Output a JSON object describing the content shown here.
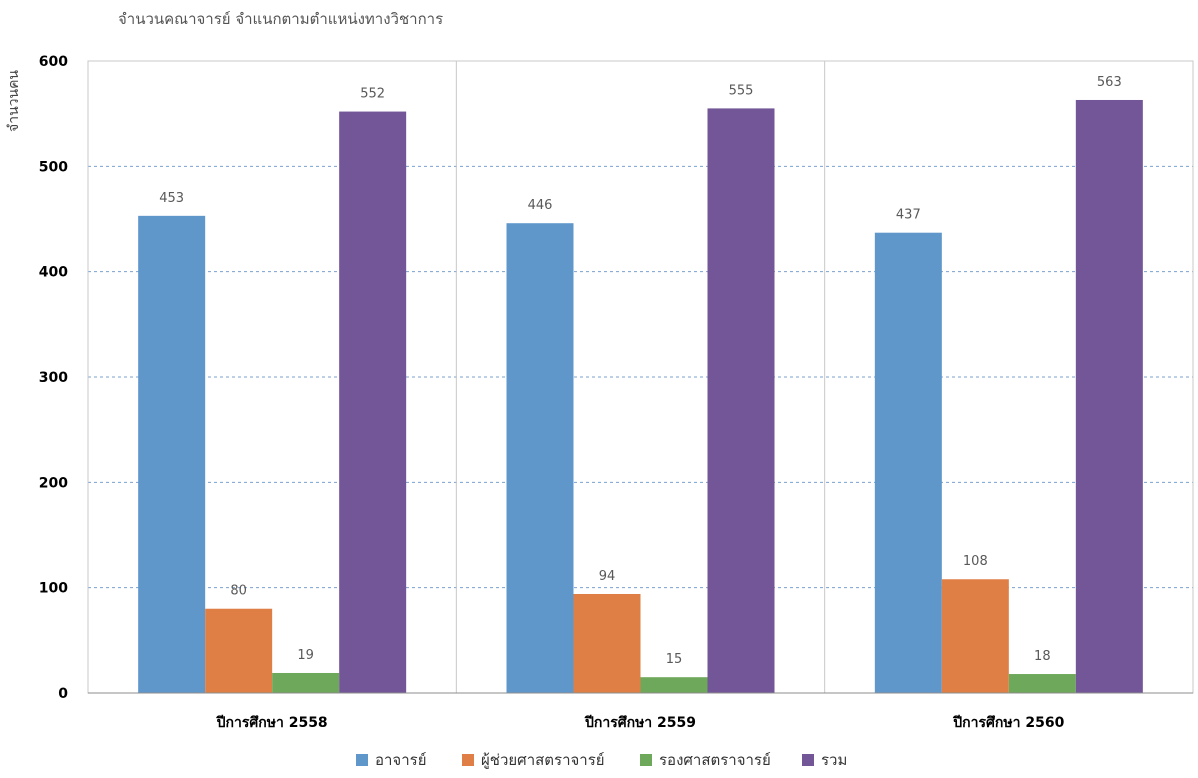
{
  "chart_data": {
    "type": "bar",
    "title": "จำนวนคณาจารย์ จำแนกตามตำแหน่งทางวิชาการ",
    "xlabel": "",
    "ylabel": "จำนวนคน",
    "ylim": [
      0,
      600
    ],
    "yticks": [
      0,
      100,
      200,
      300,
      400,
      500,
      600
    ],
    "categories": [
      "ปีการศึกษา 2558",
      "ปีการศึกษา 2559",
      "ปีการศึกษา 2560"
    ],
    "series": [
      {
        "name": "อาจารย์",
        "color": "#5f97cb",
        "values": [
          453,
          446,
          437
        ]
      },
      {
        "name": "ผู้ช่วยศาสตราจารย์",
        "color": "#e07f45",
        "values": [
          80,
          94,
          108
        ]
      },
      {
        "name": "รองศาสตราจารย์",
        "color": "#6ea85a",
        "values": [
          19,
          15,
          18
        ]
      },
      {
        "name": "รวม",
        "color": "#735697",
        "values": [
          552,
          555,
          563
        ]
      }
    ],
    "grid": true,
    "legend": "bottom"
  }
}
